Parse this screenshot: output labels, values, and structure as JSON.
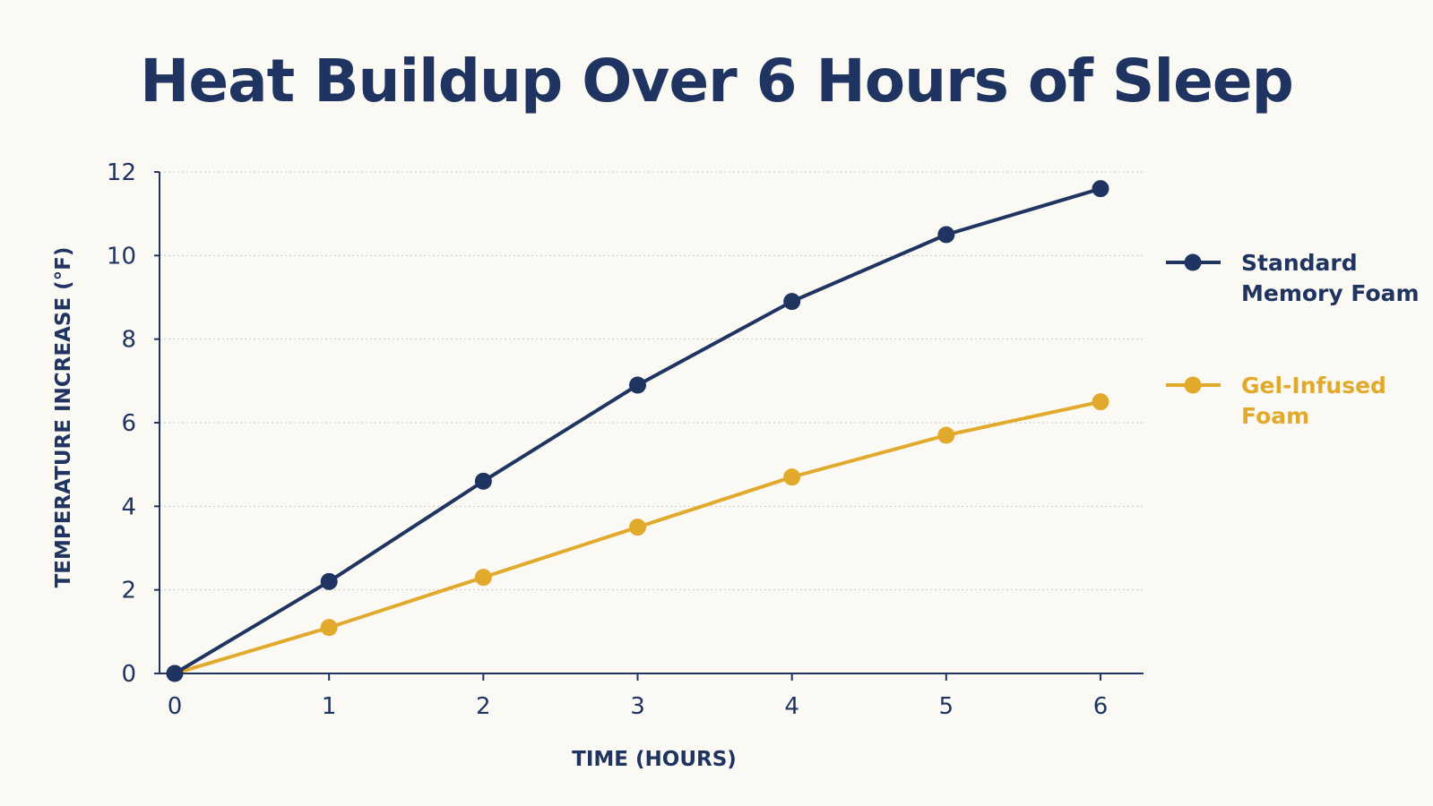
{
  "chart_data": {
    "type": "line",
    "title": "Heat Buildup Over 6 Hours of Sleep",
    "xlabel": "TIME (HOURS)",
    "ylabel": "TEMPERATURE INCREASE (°F)",
    "x": [
      0,
      1,
      2,
      3,
      4,
      5,
      6
    ],
    "xlim": [
      0,
      6
    ],
    "ylim": [
      0,
      12
    ],
    "xticks": [
      0,
      1,
      2,
      3,
      4,
      5,
      6
    ],
    "yticks": [
      0,
      2,
      4,
      6,
      8,
      10,
      12
    ],
    "grid": "horizontal dotted",
    "legend_position": "right",
    "series": [
      {
        "name": "Standard Memory Foam",
        "legend_lines": [
          "Standard",
          "Memory Foam"
        ],
        "color": "#1f3461",
        "values": [
          0,
          2.2,
          4.6,
          6.9,
          8.9,
          10.5,
          11.6
        ]
      },
      {
        "name": "Gel-Infused Foam",
        "legend_lines": [
          "Gel-Infused",
          "Foam"
        ],
        "color": "#e2aa2d",
        "values": [
          0,
          1.1,
          2.3,
          3.5,
          4.7,
          5.7,
          6.5
        ]
      }
    ],
    "colors": {
      "axis": "#1f3461",
      "grid": "#c9c9c4",
      "background": "#fbf9f3"
    }
  }
}
